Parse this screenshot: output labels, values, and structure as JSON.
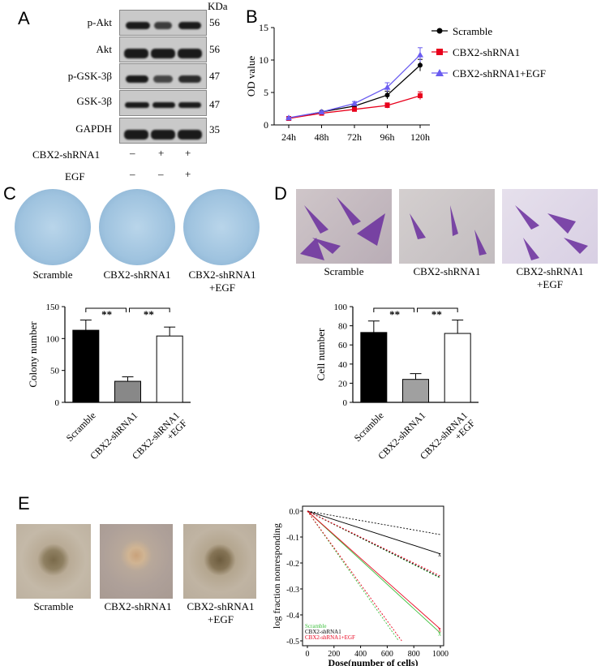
{
  "panels": {
    "a": "A",
    "b": "B",
    "c": "C",
    "d": "D",
    "e": "E"
  },
  "western_blot": {
    "kda_header": "KDa",
    "rows": [
      {
        "label": "p-Akt",
        "kda": "56"
      },
      {
        "label": "Akt",
        "kda": "56"
      },
      {
        "label": "p-GSK-3β",
        "kda": "47"
      },
      {
        "label": "GSK-3β",
        "kda": "47"
      },
      {
        "label": "GAPDH",
        "kda": "35"
      }
    ],
    "conditions": [
      {
        "label": "CBX2-shRNA1",
        "marks": [
          "–",
          "+",
          "+"
        ]
      },
      {
        "label": "EGF",
        "marks": [
          "–",
          "–",
          "+"
        ]
      }
    ]
  },
  "photo_captions": {
    "c": [
      "Scramble",
      "CBX2-shRNA1",
      "CBX2-shRNA1\n+EGF"
    ],
    "d": [
      "Scramble",
      "CBX2-shRNA1",
      "CBX2-shRNA1\n+EGF"
    ],
    "e": [
      "Scramble",
      "CBX2-shRNA1",
      "CBX2-shRNA1\n+EGF"
    ]
  },
  "colors": {
    "scramble": "#000000",
    "shrna": "#e8001c",
    "egf": "#6a5cf0",
    "bar_mid_c": "#888888",
    "bar_mid_d": "#a0a0a0",
    "green": "#3bbf3b"
  },
  "chart_data": [
    {
      "id": "B",
      "type": "line",
      "x": [
        "24h",
        "48h",
        "72h",
        "96h",
        "120h"
      ],
      "ylabel": "OD value",
      "ylim": [
        0,
        15
      ],
      "yticks": [
        0,
        5,
        10,
        15
      ],
      "legend_position": "right",
      "series": [
        {
          "name": "Scramble",
          "values": [
            1.0,
            2.0,
            2.9,
            4.6,
            9.2
          ],
          "err": [
            0.1,
            0.15,
            0.3,
            0.6,
            0.9
          ],
          "color": "#000000",
          "marker": "circle"
        },
        {
          "name": "CBX2-shRNA1",
          "values": [
            1.0,
            1.8,
            2.4,
            3.0,
            4.5
          ],
          "err": [
            0.1,
            0.15,
            0.3,
            0.4,
            0.6
          ],
          "color": "#e8001c",
          "marker": "square"
        },
        {
          "name": "CBX2-shRNA1+EGF",
          "values": [
            1.1,
            2.0,
            3.3,
            5.8,
            10.8
          ],
          "err": [
            0.1,
            0.15,
            0.3,
            0.7,
            1.1
          ],
          "color": "#6a5cf0",
          "marker": "triangle"
        }
      ]
    },
    {
      "id": "C",
      "type": "bar",
      "categories": [
        "Scramble",
        "CBX2-shRNA1",
        "CBX2-shRNA1\n+EGF"
      ],
      "values": [
        113,
        33,
        104
      ],
      "err": [
        16,
        7,
        14
      ],
      "ylabel": "Colony number",
      "ylim": [
        0,
        150
      ],
      "yticks": [
        0,
        50,
        100,
        150
      ],
      "significance": [
        "**",
        "**"
      ]
    },
    {
      "id": "D",
      "type": "bar",
      "categories": [
        "Scramble",
        "CBX2-shRNA1",
        "CBX2-shRNA1\n+EGF"
      ],
      "values": [
        73,
        24,
        72
      ],
      "err": [
        12,
        6,
        14
      ],
      "ylabel": "Cell number",
      "ylim": [
        0,
        100
      ],
      "yticks": [
        0,
        20,
        40,
        60,
        80,
        100
      ],
      "significance": [
        "**",
        "**"
      ]
    },
    {
      "id": "E",
      "type": "line",
      "xlabel": "Dose(number of  cells)",
      "ylabel": "log fraction nonresponding",
      "xlim": [
        0,
        1000
      ],
      "xticks": [
        0,
        200,
        400,
        600,
        800,
        1000
      ],
      "ylim": [
        -0.5,
        0.0
      ],
      "yticks": [
        0.0,
        -0.1,
        -0.2,
        -0.3,
        -0.4,
        -0.5
      ],
      "series": [
        {
          "name": "Scramble",
          "color": "#3bbf3b",
          "x": [
            0,
            1000
          ],
          "values": [
            0,
            -0.47
          ]
        },
        {
          "name": "CBX2-shRNA1",
          "color": "#000000",
          "x": [
            0,
            1000
          ],
          "values": [
            0,
            -0.165
          ]
        },
        {
          "name": "CBX2-shRNA1+EGF",
          "color": "#e8001c",
          "x": [
            0,
            1000
          ],
          "values": [
            0,
            -0.455
          ]
        }
      ]
    }
  ]
}
